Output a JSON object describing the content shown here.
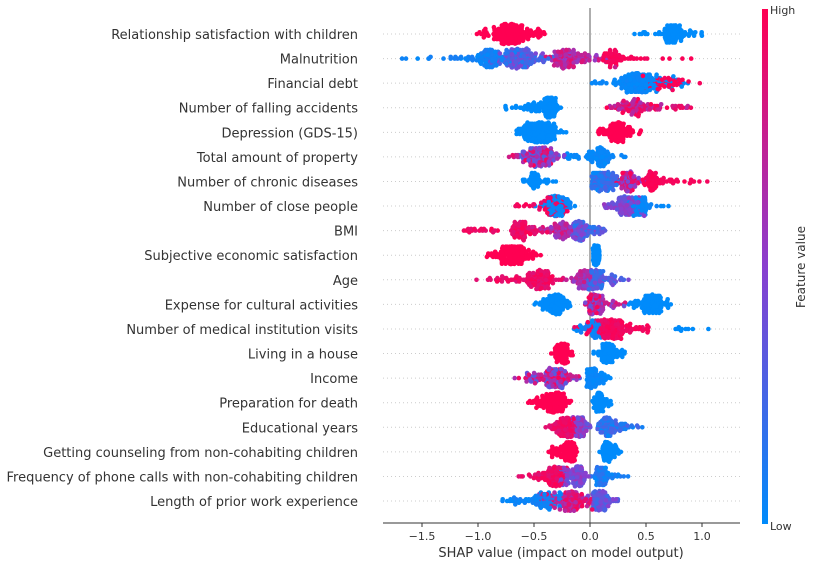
{
  "chart_data": {
    "type": "scatter",
    "subtype": "shap-beeswarm",
    "xlabel": "SHAP value (impact on model output)",
    "xlim": [
      -1.85,
      1.34
    ],
    "xticks": [
      "−1.5",
      "−1.0",
      "−0.5",
      "0.0",
      "0.5",
      "1.0"
    ],
    "xtick_values": [
      -1.5,
      -1.0,
      -0.5,
      0.0,
      0.5,
      1.0
    ],
    "grid": "dotted horizontal row lines",
    "colorbar": {
      "label": "Feature value",
      "high": "High",
      "low": "Low",
      "low_color": "#008bfb",
      "mid_color": "#8a3fcf",
      "high_color": "#ff0052"
    },
    "features": [
      {
        "name": "Relationship satisfaction with children",
        "clusters": [
          {
            "lo": -1.07,
            "hi": -0.33,
            "mode": -0.7,
            "core": 0.25,
            "n": 260,
            "fv": [
              1,
              1
            ]
          },
          {
            "lo": 0.37,
            "hi": 1.05,
            "mode": 0.75,
            "core": 0.2,
            "n": 110,
            "fv": [
              0,
              0
            ]
          }
        ]
      },
      {
        "name": "Malnutrition",
        "clusters": [
          {
            "lo": -1.72,
            "hi": -0.5,
            "mode": -0.9,
            "core": 0.25,
            "n": 110,
            "fv": [
              0,
              0.1
            ]
          },
          {
            "lo": -0.95,
            "hi": -0.3,
            "mode": -0.65,
            "core": 0.3,
            "n": 180,
            "fv": [
              0.1,
              0.5
            ]
          },
          {
            "lo": -0.45,
            "hi": 0.3,
            "mode": -0.2,
            "core": 0.3,
            "n": 140,
            "fv": [
              0.5,
              0.9
            ]
          },
          {
            "lo": 0.0,
            "hi": 1.03,
            "mode": 0.2,
            "core": 0.2,
            "n": 60,
            "fv": [
              0.95,
              1
            ]
          }
        ]
      },
      {
        "name": "Financial debt",
        "clusters": [
          {
            "lo": 0.0,
            "hi": 0.9,
            "mode": 0.42,
            "core": 0.3,
            "n": 240,
            "fv": [
              0,
              0.05
            ]
          },
          {
            "lo": 0.25,
            "hi": 1.1,
            "mode": 0.7,
            "core": 0.3,
            "n": 50,
            "fv": [
              0.95,
              1
            ]
          }
        ]
      },
      {
        "name": "Number of falling accidents",
        "clusters": [
          {
            "lo": -0.8,
            "hi": -0.25,
            "mode": -0.36,
            "core": 0.12,
            "n": 180,
            "fv": [
              0,
              0
            ]
          },
          {
            "lo": 0.08,
            "hi": 1.03,
            "mode": 0.4,
            "core": 0.5,
            "n": 110,
            "fv": [
              0.6,
              1
            ]
          }
        ]
      },
      {
        "name": "Depression (GDS-15)",
        "clusters": [
          {
            "lo": -0.75,
            "hi": -0.15,
            "mode": -0.45,
            "core": 0.3,
            "n": 250,
            "fv": [
              0,
              0
            ]
          },
          {
            "lo": 0.05,
            "hi": 0.46,
            "mode": 0.25,
            "core": 0.2,
            "n": 130,
            "fv": [
              1,
              1
            ]
          }
        ]
      },
      {
        "name": "Total amount of property",
        "clusters": [
          {
            "lo": -0.75,
            "hi": -0.2,
            "mode": -0.45,
            "core": 0.25,
            "n": 190,
            "fv": [
              0.25,
              1
            ]
          },
          {
            "lo": -0.3,
            "hi": 0.33,
            "mode": 0.1,
            "core": 0.2,
            "n": 100,
            "fv": [
              0,
              0.05
            ]
          }
        ]
      },
      {
        "name": "Number of chronic diseases",
        "clusters": [
          {
            "lo": -0.65,
            "hi": -0.27,
            "mode": -0.5,
            "core": 0.15,
            "n": 50,
            "fv": [
              0,
              0
            ]
          },
          {
            "lo": -0.02,
            "hi": 0.3,
            "mode": 0.1,
            "core": 0.2,
            "n": 140,
            "fv": [
              0,
              0.3
            ]
          },
          {
            "lo": 0.15,
            "hi": 0.5,
            "mode": 0.35,
            "core": 0.15,
            "n": 120,
            "fv": [
              0.4,
              1
            ]
          },
          {
            "lo": 0.35,
            "hi": 1.1,
            "mode": 0.55,
            "core": 0.2,
            "n": 80,
            "fv": [
              0.95,
              1
            ]
          }
        ]
      },
      {
        "name": "Number of close people",
        "clusters": [
          {
            "lo": -0.77,
            "hi": -0.1,
            "mode": -0.3,
            "core": 0.3,
            "n": 70,
            "fv": [
              0.9,
              1
            ]
          },
          {
            "lo": -0.5,
            "hi": -0.1,
            "mode": -0.3,
            "core": 0.2,
            "n": 120,
            "fv": [
              0,
              0.05
            ]
          },
          {
            "lo": 0.1,
            "hi": 0.5,
            "mode": 0.32,
            "core": 0.15,
            "n": 140,
            "fv": [
              0.3,
              0.6
            ]
          },
          {
            "lo": 0.3,
            "hi": 0.73,
            "mode": 0.45,
            "core": 0.15,
            "n": 70,
            "fv": [
              0,
              0.05
            ]
          }
        ]
      },
      {
        "name": "BMI",
        "clusters": [
          {
            "lo": -1.3,
            "hi": -0.3,
            "mode": -0.6,
            "core": 0.3,
            "n": 110,
            "fv": [
              0.85,
              1
            ]
          },
          {
            "lo": -0.55,
            "hi": -0.1,
            "mode": -0.25,
            "core": 0.2,
            "n": 70,
            "fv": [
              0.5,
              0.85
            ]
          },
          {
            "lo": -0.2,
            "hi": 0.18,
            "mode": -0.1,
            "core": 0.12,
            "n": 150,
            "fv": [
              0.1,
              0.55
            ]
          }
        ]
      },
      {
        "name": "Subjective economic satisfaction",
        "clusters": [
          {
            "lo": -0.97,
            "hi": -0.42,
            "mode": -0.7,
            "core": 0.3,
            "n": 170,
            "fv": [
              1,
              1
            ]
          },
          {
            "lo": 0.02,
            "hi": 0.1,
            "mode": 0.05,
            "core": 0.05,
            "n": 110,
            "fv": [
              0,
              0
            ]
          }
        ]
      },
      {
        "name": "Age",
        "clusters": [
          {
            "lo": -1.05,
            "hi": -0.2,
            "mode": -0.45,
            "core": 0.3,
            "n": 150,
            "fv": [
              0.85,
              1
            ]
          },
          {
            "lo": -0.3,
            "hi": 0.05,
            "mode": -0.05,
            "core": 0.15,
            "n": 80,
            "fv": [
              0.5,
              0.8
            ]
          },
          {
            "lo": -0.1,
            "hi": 0.37,
            "mode": 0.05,
            "core": 0.15,
            "n": 140,
            "fv": [
              0.1,
              0.45
            ]
          }
        ]
      },
      {
        "name": "Expense for cultural activities",
        "clusters": [
          {
            "lo": -0.5,
            "hi": -0.15,
            "mode": -0.3,
            "core": 0.15,
            "n": 140,
            "fv": [
              0,
              0
            ]
          },
          {
            "lo": -0.1,
            "hi": 0.32,
            "mode": 0.05,
            "core": 0.15,
            "n": 150,
            "fv": [
              0.35,
              1
            ]
          },
          {
            "lo": 0.28,
            "hi": 0.8,
            "mode": 0.55,
            "core": 0.2,
            "n": 120,
            "fv": [
              0,
              0
            ]
          }
        ]
      },
      {
        "name": "Number of medical institution visits",
        "clusters": [
          {
            "lo": -0.2,
            "hi": 0.55,
            "mode": 0.2,
            "core": 0.2,
            "n": 240,
            "fv": [
              0.9,
              1
            ]
          },
          {
            "lo": -0.15,
            "hi": 0.15,
            "mode": 0.05,
            "core": 0.1,
            "n": 50,
            "fv": [
              0,
              0.1
            ]
          },
          {
            "lo": 0.65,
            "hi": 1.2,
            "mode": 0.8,
            "core": 0.1,
            "n": 10,
            "fv": [
              0,
              0
            ]
          }
        ]
      },
      {
        "name": "Living in a house",
        "clusters": [
          {
            "lo": -0.35,
            "hi": -0.15,
            "mode": -0.23,
            "core": 0.06,
            "n": 150,
            "fv": [
              1,
              1
            ]
          },
          {
            "lo": 0.03,
            "hi": 0.33,
            "mode": 0.15,
            "core": 0.1,
            "n": 150,
            "fv": [
              0,
              0
            ]
          }
        ]
      },
      {
        "name": "Income",
        "clusters": [
          {
            "lo": -0.75,
            "hi": -0.05,
            "mode": -0.3,
            "core": 0.2,
            "n": 220,
            "fv": [
              0.3,
              1
            ]
          },
          {
            "lo": -0.05,
            "hi": 0.2,
            "mode": 0.0,
            "core": 0.06,
            "n": 130,
            "fv": [
              0,
              0.05
            ]
          }
        ]
      },
      {
        "name": "Preparation for death",
        "clusters": [
          {
            "lo": -0.6,
            "hi": -0.15,
            "mode": -0.3,
            "core": 0.2,
            "n": 180,
            "fv": [
              1,
              1
            ]
          },
          {
            "lo": 0.0,
            "hi": 0.2,
            "mode": 0.08,
            "core": 0.06,
            "n": 110,
            "fv": [
              0,
              0
            ]
          }
        ]
      },
      {
        "name": "Educational years",
        "clusters": [
          {
            "lo": -0.5,
            "hi": -0.1,
            "mode": -0.2,
            "core": 0.15,
            "n": 140,
            "fv": [
              0.85,
              1
            ]
          },
          {
            "lo": -0.22,
            "hi": 0.02,
            "mode": -0.08,
            "core": 0.08,
            "n": 150,
            "fv": [
              0.3,
              0.65
            ]
          },
          {
            "lo": 0.0,
            "hi": 0.51,
            "mode": 0.15,
            "core": 0.2,
            "n": 100,
            "fv": [
              0,
              0.3
            ]
          }
        ]
      },
      {
        "name": "Getting counseling from non-cohabiting children",
        "clusters": [
          {
            "lo": -0.4,
            "hi": -0.1,
            "mode": -0.17,
            "core": 0.08,
            "n": 170,
            "fv": [
              1,
              1
            ]
          },
          {
            "lo": 0.08,
            "hi": 0.3,
            "mode": 0.15,
            "core": 0.08,
            "n": 100,
            "fv": [
              0,
              0
            ]
          }
        ]
      },
      {
        "name": "Frequency of phone calls with non-cohabiting children",
        "clusters": [
          {
            "lo": -0.68,
            "hi": -0.15,
            "mode": -0.3,
            "core": 0.2,
            "n": 130,
            "fv": [
              0.85,
              1
            ]
          },
          {
            "lo": -0.3,
            "hi": 0.0,
            "mode": -0.1,
            "core": 0.08,
            "n": 150,
            "fv": [
              0.3,
              0.6
            ]
          },
          {
            "lo": 0.0,
            "hi": 0.36,
            "mode": 0.1,
            "core": 0.15,
            "n": 80,
            "fv": [
              0,
              0.2
            ]
          }
        ]
      },
      {
        "name": "Length of prior work experience",
        "clusters": [
          {
            "lo": -0.92,
            "hi": -0.2,
            "mode": -0.4,
            "core": 0.3,
            "n": 90,
            "fv": [
              0,
              0.1
            ]
          },
          {
            "lo": -0.5,
            "hi": 0.05,
            "mode": -0.15,
            "core": 0.2,
            "n": 180,
            "fv": [
              0.6,
              1
            ]
          },
          {
            "lo": -0.05,
            "hi": 0.27,
            "mode": 0.08,
            "core": 0.12,
            "n": 170,
            "fv": [
              0.2,
              0.5
            ]
          }
        ]
      }
    ]
  }
}
